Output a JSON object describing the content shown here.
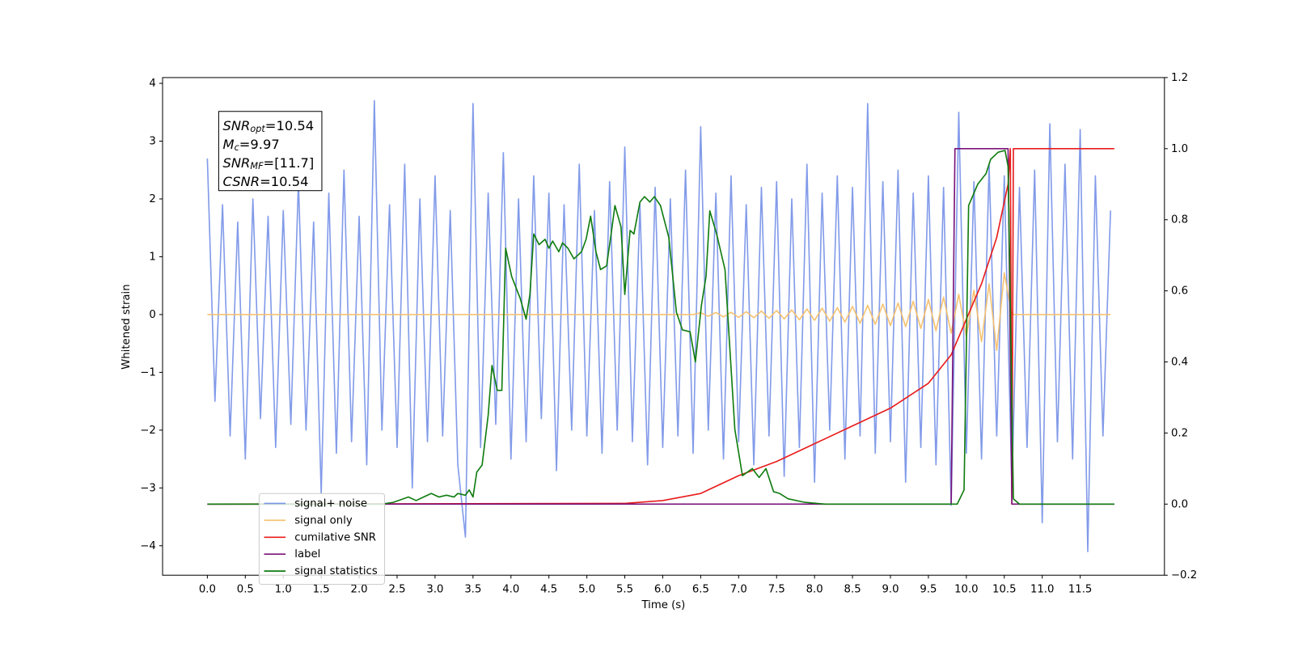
{
  "chart_data": {
    "type": "line",
    "xlabel": "Time (s)",
    "ylabel": "Whitened strain",
    "xlim": [
      -0.59,
      12.61
    ],
    "ylim": [
      -4.51,
      4.1
    ],
    "y2lim": [
      -0.2,
      1.2
    ],
    "xticks": [
      {
        "value": 0,
        "label": "0.0"
      },
      0.5,
      {
        "value": 1,
        "label": "1.0"
      },
      1.5,
      {
        "value": 2,
        "label": "2.0"
      },
      2.5,
      {
        "value": 3,
        "label": "3.0"
      },
      3.5,
      {
        "value": 4,
        "label": "4.0"
      },
      4.5,
      {
        "value": 5,
        "label": "5.0"
      },
      5.5,
      {
        "value": 6,
        "label": "6.0"
      },
      6.5,
      {
        "value": 7,
        "label": "7.0"
      },
      7.5,
      {
        "value": 8,
        "label": "8.0"
      },
      8.5,
      {
        "value": 9,
        "label": "9.0"
      },
      9.5,
      {
        "value": 10,
        "label": "10.0"
      },
      10.5,
      {
        "value": 11,
        "label": "11.0"
      },
      11.5
    ],
    "yticks": [
      {
        "value": -4,
        "label": "−4"
      },
      {
        "value": -3,
        "label": "−3"
      },
      {
        "value": -2,
        "label": "−2"
      },
      {
        "value": -1,
        "label": "−1"
      },
      0,
      1,
      2,
      3,
      4
    ],
    "y2ticks": [
      {
        "value": -0.2,
        "label": "−0.2"
      },
      {
        "value": 0,
        "label": "0.0"
      },
      0.2,
      0.4,
      0.6,
      0.8,
      {
        "value": 1,
        "label": "1.0"
      },
      1.2
    ],
    "legend": "lower left",
    "annotations": [
      {
        "symbol": "SNR",
        "subscript": "opt",
        "text": "=10.54"
      },
      {
        "symbol": "M",
        "subscript": "c",
        "text": "=9.97"
      },
      {
        "symbol": "SNR",
        "subscript": "MF",
        "text": "=[11.7]"
      },
      {
        "symbol": "CSNR",
        "subscript": "",
        "text": "=10.54"
      }
    ],
    "x": [
      0,
      0.1,
      0.2,
      0.3,
      0.4,
      0.5,
      0.6,
      0.7,
      0.8,
      0.9,
      1,
      1.1,
      1.2,
      1.3,
      1.4,
      1.5,
      1.6,
      1.7,
      1.8,
      1.9,
      2,
      2.1,
      2.2,
      2.3,
      2.4,
      2.5,
      2.6,
      2.7,
      2.8,
      2.9,
      3,
      3.1,
      3.2,
      3.3,
      3.4,
      3.5,
      3.6,
      3.7,
      3.8,
      3.9,
      4,
      4.1,
      4.2,
      4.3,
      4.4,
      4.5,
      4.6,
      4.7,
      4.8,
      4.9,
      5,
      5.1,
      5.2,
      5.3,
      5.4,
      5.5,
      5.6,
      5.7,
      5.8,
      5.9,
      6,
      6.1,
      6.2,
      6.3,
      6.4,
      6.5,
      6.6,
      6.7,
      6.8,
      6.9,
      7,
      7.1,
      7.2,
      7.3,
      7.4,
      7.5,
      7.6,
      7.7,
      7.8,
      7.9,
      8,
      8.1,
      8.2,
      8.3,
      8.4,
      8.5,
      8.6,
      8.7,
      8.8,
      8.9,
      9,
      9.1,
      9.2,
      9.3,
      9.4,
      9.5,
      9.6,
      9.7,
      9.8,
      9.9,
      10,
      10.1,
      10.2,
      10.3,
      10.4,
      10.5,
      10.6,
      10.7,
      10.8,
      10.9,
      11,
      11.1,
      11.2,
      11.3,
      11.4,
      11.5,
      11.6,
      11.7,
      11.8,
      11.9
    ],
    "series": [
      {
        "name": "signal+ noise",
        "color": "#7b96e8",
        "values": [
          2.7,
          -1.5,
          1.9,
          -2.1,
          1.6,
          -2.5,
          2.0,
          -1.8,
          1.7,
          -2.3,
          1.8,
          -1.9,
          2.3,
          -2.0,
          1.6,
          -3.1,
          2.1,
          -2.4,
          2.5,
          -2.2,
          1.7,
          -2.6,
          3.7,
          -2.0,
          1.9,
          -2.3,
          2.6,
          -3.0,
          2.0,
          -2.2,
          2.4,
          -2.1,
          1.8,
          -2.6,
          -3.85,
          3.65,
          -2.3,
          2.1,
          -1.9,
          2.8,
          -2.5,
          2.0,
          -2.2,
          2.4,
          -1.8,
          2.1,
          -2.7,
          1.9,
          -2.0,
          2.6,
          -2.1,
          1.8,
          -2.4,
          2.3,
          -2.0,
          2.9,
          -2.2,
          1.9,
          -2.6,
          2.2,
          -2.3,
          2.0,
          -2.1,
          2.5,
          -2.4,
          3.25,
          -2.0,
          2.1,
          -2.5,
          2.4,
          -2.2,
          1.9,
          -2.6,
          2.2,
          -2.1,
          2.3,
          -2.8,
          2.0,
          -2.3,
          2.6,
          -2.9,
          2.1,
          -2.0,
          2.4,
          -2.5,
          2.2,
          -2.1,
          3.65,
          -2.4,
          2.3,
          -2.2,
          2.5,
          -2.9,
          2.1,
          -2.3,
          2.4,
          -2.6,
          2.2,
          -3.3,
          3.5,
          -2.4,
          2.3,
          -2.5,
          2.6,
          -2.1,
          2.4,
          -3.0,
          2.2,
          -2.3,
          2.5,
          -3.6,
          3.3,
          -2.2,
          2.6,
          -2.5,
          3.2,
          -4.1,
          2.4,
          -2.1,
          1.8
        ]
      },
      {
        "name": "signal only",
        "color": "#f5c06a",
        "values": [
          0,
          0,
          0,
          0,
          0,
          0,
          0,
          0,
          0,
          0,
          0,
          0,
          0,
          0,
          0,
          0,
          0,
          0,
          0,
          0,
          0,
          0,
          0,
          0,
          0,
          0,
          0,
          0,
          0,
          0,
          0,
          0,
          0,
          0,
          0,
          0,
          0,
          0,
          0,
          0,
          0,
          0,
          0,
          0,
          0,
          0,
          0,
          0,
          0,
          0,
          0,
          0,
          0,
          0,
          0,
          0,
          0,
          0,
          0,
          0,
          0,
          0,
          0,
          0,
          0,
          0.03,
          -0.03,
          0.035,
          -0.04,
          0.04,
          -0.05,
          0.05,
          -0.055,
          0.06,
          -0.065,
          0.07,
          -0.075,
          0.08,
          -0.09,
          0.095,
          -0.1,
          0.11,
          -0.115,
          0.12,
          -0.13,
          0.14,
          -0.15,
          0.16,
          -0.17,
          0.18,
          -0.19,
          0.2,
          -0.21,
          0.23,
          -0.24,
          0.26,
          -0.28,
          0.3,
          -0.32,
          0.35,
          -0.38,
          0.42,
          -0.47,
          0.53,
          -0.62,
          0.72,
          0,
          0,
          0,
          0,
          0,
          0,
          0,
          0,
          0,
          0,
          0,
          0,
          0,
          0
        ]
      },
      {
        "name": "cumilative SNR",
        "color": "#e81c1c",
        "axis": "y2",
        "x": [
          0,
          5.5,
          6.0,
          6.5,
          7.0,
          7.5,
          8.0,
          8.5,
          9.0,
          9.5,
          9.8,
          10.0,
          10.2,
          10.4,
          10.55,
          10.58,
          10.6,
          10.62,
          11.95
        ],
        "values": [
          0,
          0.002,
          0.01,
          0.03,
          0.08,
          0.12,
          0.17,
          0.22,
          0.27,
          0.34,
          0.42,
          0.52,
          0.62,
          0.75,
          0.9,
          1.0,
          0,
          1.0,
          1.0
        ]
      },
      {
        "name": "label",
        "color": "#7a137a",
        "axis": "y2",
        "x": [
          0,
          9.8,
          9.85,
          10.55,
          10.6,
          11.95
        ],
        "values": [
          0,
          0,
          1,
          1,
          0,
          0
        ]
      },
      {
        "name": "signal statistics",
        "color": "#107c10",
        "axis": "y2",
        "x": [
          0,
          2.3,
          2.45,
          2.65,
          2.75,
          2.85,
          2.95,
          3.05,
          3.15,
          3.25,
          3.3,
          3.4,
          3.45,
          3.5,
          3.55,
          3.62,
          3.7,
          3.75,
          3.82,
          3.88,
          3.93,
          4.01,
          4.12,
          4.2,
          4.25,
          4.3,
          4.37,
          4.45,
          4.5,
          4.55,
          4.63,
          4.68,
          4.75,
          4.83,
          4.93,
          4.99,
          5.05,
          5.12,
          5.18,
          5.26,
          5.32,
          5.37,
          5.45,
          5.5,
          5.57,
          5.62,
          5.7,
          5.76,
          5.83,
          5.89,
          5.97,
          6.08,
          6.18,
          6.26,
          6.36,
          6.43,
          6.51,
          6.57,
          6.62,
          6.71,
          6.82,
          6.95,
          7.05,
          7.18,
          7.27,
          7.36,
          7.46,
          7.54,
          7.65,
          7.87,
          8.14,
          9.88,
          9.97,
          10.03,
          10.15,
          10.26,
          10.32,
          10.42,
          10.51,
          10.55,
          10.62,
          10.7,
          11.95
        ],
        "values": [
          0,
          0,
          0.005,
          0.02,
          0.01,
          0.02,
          0.03,
          0.02,
          0.025,
          0.02,
          0.03,
          0.025,
          0.04,
          0.02,
          0.09,
          0.11,
          0.25,
          0.39,
          0.32,
          0.32,
          0.72,
          0.64,
          0.58,
          0.52,
          0.59,
          0.76,
          0.73,
          0.745,
          0.72,
          0.74,
          0.71,
          0.735,
          0.72,
          0.69,
          0.71,
          0.745,
          0.81,
          0.71,
          0.66,
          0.67,
          0.76,
          0.84,
          0.78,
          0.59,
          0.77,
          0.76,
          0.85,
          0.865,
          0.85,
          0.865,
          0.84,
          0.75,
          0.54,
          0.49,
          0.485,
          0.4,
          0.56,
          0.64,
          0.825,
          0.76,
          0.66,
          0.21,
          0.08,
          0.1,
          0.075,
          0.1,
          0.035,
          0.03,
          0.015,
          0.005,
          0,
          0,
          0.04,
          0.84,
          0.9,
          0.93,
          0.97,
          0.99,
          0.995,
          0.95,
          0.015,
          0,
          0
        ]
      }
    ]
  }
}
